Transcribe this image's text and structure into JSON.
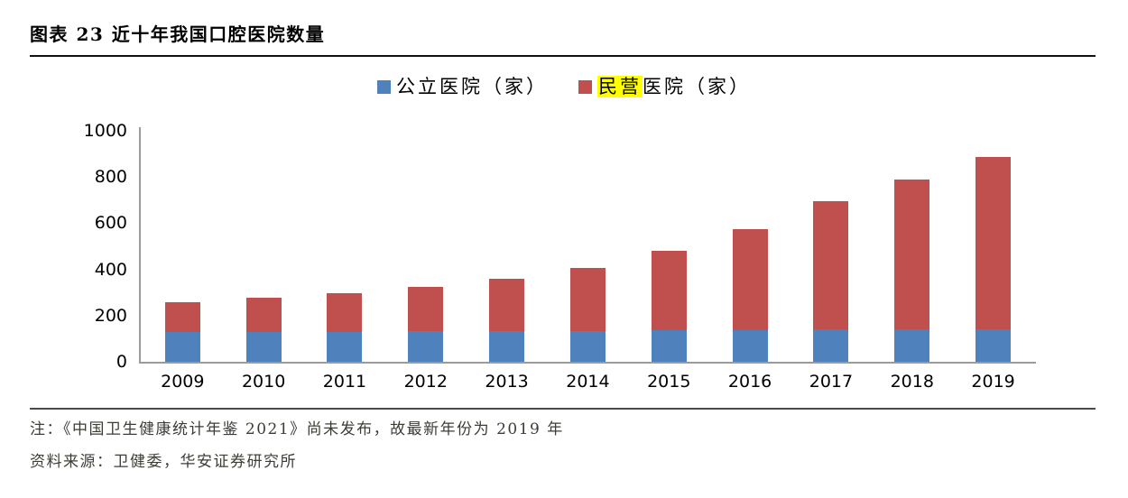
{
  "title": "图表 23 近十年我国口腔医院数量",
  "legend": {
    "public_label": "公立医院（家）",
    "private_label_highlight": "民营",
    "private_label_rest": "医院（家）"
  },
  "notes": {
    "note": "注：《中国卫生健康统计年鉴 2021》尚未发布，故最新年份为 2019 年",
    "source": "资料来源：卫健委，华安证券研究所"
  },
  "colors": {
    "public_series": "#4F81BD",
    "private_series": "#C0504D",
    "highlight_background": "#FFFF00",
    "axis_line": "#9B9B9B"
  },
  "chart_data": {
    "type": "bar",
    "stacked": true,
    "title": "图表 23 近十年我国口腔医院数量",
    "categories": [
      "2009",
      "2010",
      "2011",
      "2012",
      "2013",
      "2014",
      "2015",
      "2016",
      "2017",
      "2018",
      "2019"
    ],
    "series": [
      {
        "name": "公立医院（家）",
        "color": "#4F81BD",
        "values": [
          127,
          128,
          130,
          131,
          132,
          134,
          137,
          138,
          140,
          140,
          141
        ]
      },
      {
        "name": "民营医院（家）",
        "color": "#C0504D",
        "values": [
          130,
          150,
          168,
          191,
          226,
          275,
          343,
          438,
          554,
          650,
          747
        ]
      }
    ],
    "stacked_totals": [
      257,
      278,
      298,
      322,
      358,
      409,
      480,
      576,
      694,
      790,
      888
    ],
    "xlabel": "",
    "ylabel": "",
    "ylim": [
      0,
      1000
    ],
    "yticks": [
      0,
      200,
      400,
      600,
      800,
      1000
    ],
    "grid": false,
    "legend_position": "top-center"
  }
}
